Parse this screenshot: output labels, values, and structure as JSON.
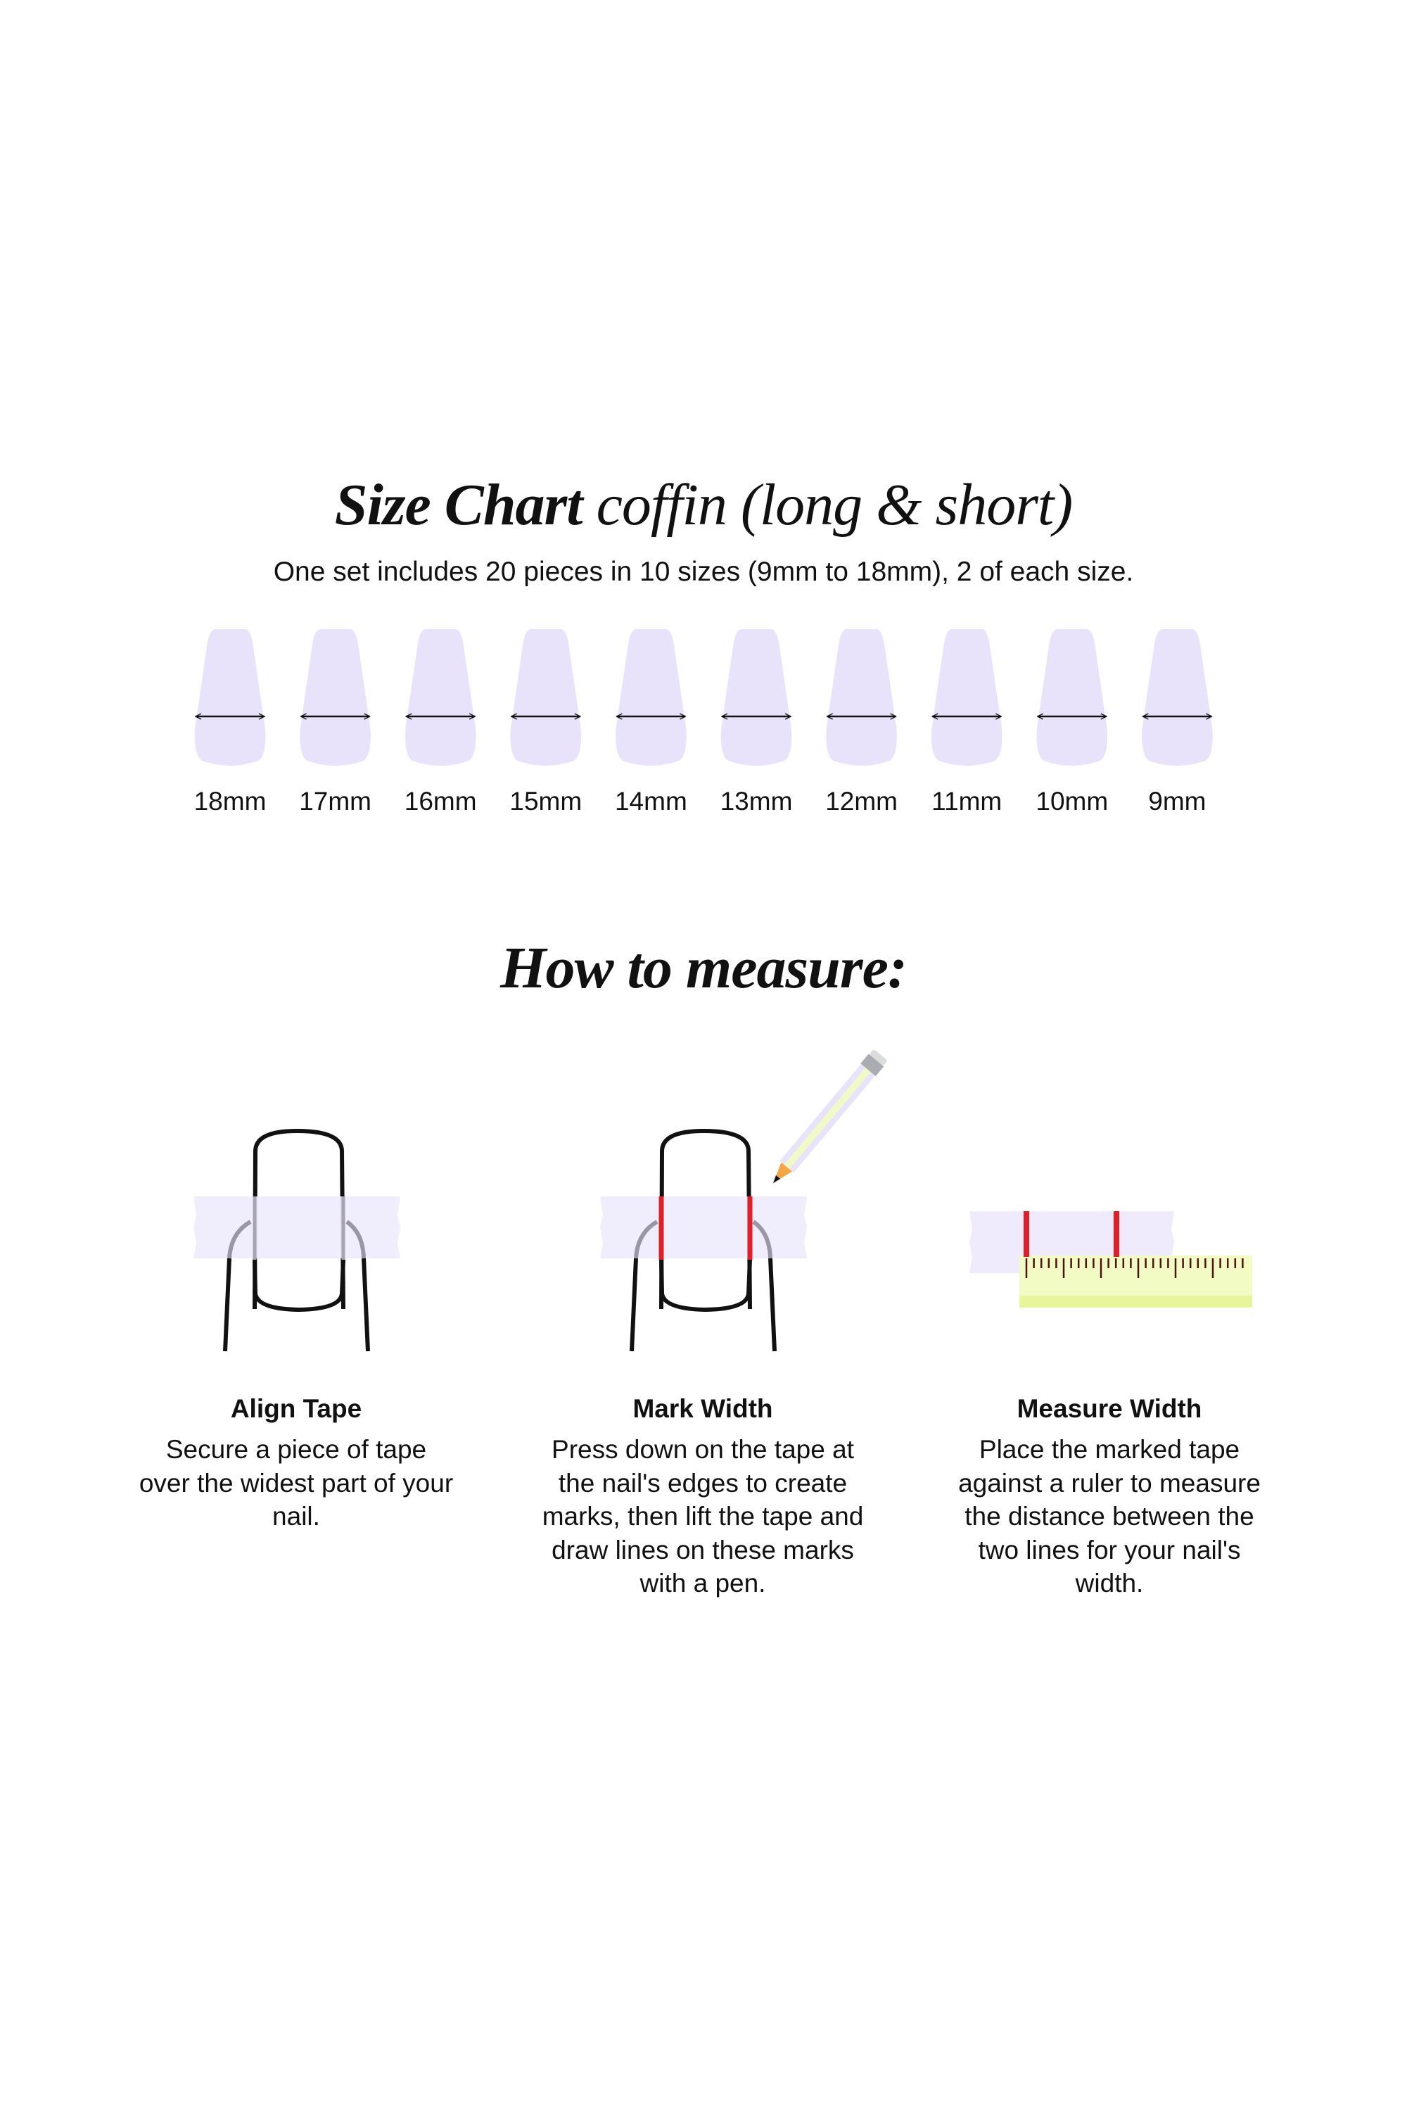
{
  "size_chart": {
    "title_bold": "Size Chart",
    "title_light": "coffin (long & short)",
    "subtitle": "One set includes 20 pieces in 10 sizes (9mm to 18mm), 2 of each size.",
    "sizes": [
      "18mm",
      "17mm",
      "16mm",
      "15mm",
      "14mm",
      "13mm",
      "12mm",
      "11mm",
      "10mm",
      "9mm"
    ],
    "nail_color": "#e8e2fb"
  },
  "how_to": {
    "title": "How to measure:",
    "steps": [
      {
        "title": "Align Tape",
        "text": "Secure a piece of tape over the widest part of your nail."
      },
      {
        "title": "Mark Width",
        "text": "Press down on the tape at the nail's edges to create marks, then lift the tape and draw lines on these marks with a pen."
      },
      {
        "title": "Measure Width",
        "text": "Place the marked tape against a ruler to measure the distance between the two lines for your nail's width."
      }
    ],
    "colors": {
      "tape": "#efebfd",
      "mark": "#e01f26",
      "ruler": "#f2fbc4",
      "ruler_band": "#e8f59a"
    }
  }
}
